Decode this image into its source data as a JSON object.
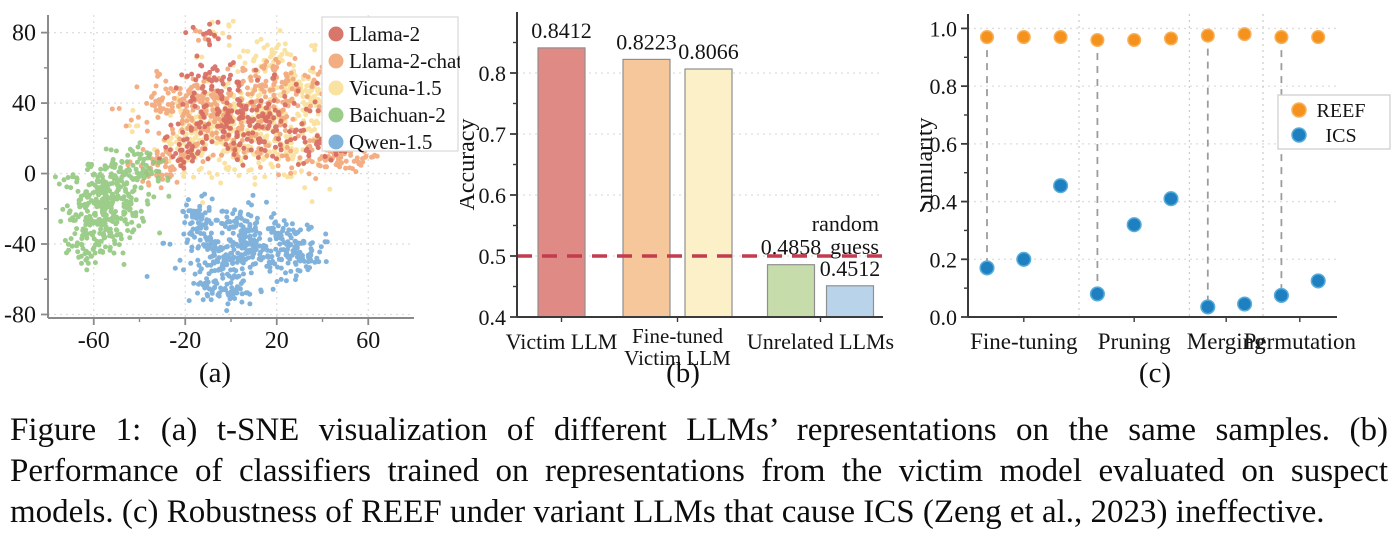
{
  "figure": {
    "caption": "Figure 1: (a) t-SNE visualization of different LLMs’ representations on the same samples. (b) Performance of classifiers trained on representations from the victim model evaluated on suspect models. (c) Robustness of REEF under variant LLMs that cause ICS (Zeng et al., 2023) ineffective.",
    "panel_labels": {
      "a": "(a)",
      "b": "(b)",
      "c": "(c)"
    }
  },
  "chart_data": [
    {
      "id": "tsne",
      "type": "scatter",
      "description": "t-SNE visualization of LLM representations",
      "xlim": [
        -80,
        80
      ],
      "ylim": [
        -82,
        90
      ],
      "xticks": {
        "values": [
          -60,
          -20,
          20,
          60
        ],
        "labels": [
          "-60",
          "-20",
          "20",
          "60"
        ],
        "minor": [
          -40,
          0,
          40
        ]
      },
      "yticks": {
        "values": [
          80,
          40,
          0,
          -40,
          -80
        ],
        "labels": [
          "80",
          "40",
          "0",
          "-40",
          "-80"
        ],
        "minor": [
          60,
          20,
          -20,
          -60
        ]
      },
      "grid": true,
      "legend_position": "top-right",
      "draw_order": [
        2,
        1,
        0,
        3,
        4
      ],
      "series": [
        {
          "name": "Llama-2",
          "color": "#d66a60",
          "clusters": [
            {
              "cx": 6,
              "cy": 30,
              "sx": 14,
              "sy": 12,
              "n": 190
            },
            {
              "cx": -8,
              "cy": 52,
              "sx": 6,
              "sy": 6,
              "n": 35
            },
            {
              "cx": 42,
              "cy": 12,
              "sx": 7,
              "sy": 5,
              "n": 28
            },
            {
              "cx": -10,
              "cy": 80,
              "sx": 4,
              "sy": 3,
              "n": 12
            },
            {
              "cx": -20,
              "cy": 12,
              "sx": 5,
              "sy": 5,
              "n": 25
            }
          ]
        },
        {
          "name": "Llama-2-chat",
          "color": "#f2a678",
          "clusters": [
            {
              "cx": 2,
              "cy": 34,
              "sx": 17,
              "sy": 13,
              "n": 250
            },
            {
              "cx": 47,
              "cy": 10,
              "sx": 9,
              "sy": 6,
              "n": 85
            },
            {
              "cx": -24,
              "cy": 40,
              "sx": 8,
              "sy": 8,
              "n": 70
            },
            {
              "cx": -30,
              "cy": 6,
              "sx": 6,
              "sy": 6,
              "n": 55
            },
            {
              "cx": 25,
              "cy": 56,
              "sx": 9,
              "sy": 5,
              "n": 45
            },
            {
              "cx": -12,
              "cy": 78,
              "sx": 3,
              "sy": 2.5,
              "n": 8
            }
          ]
        },
        {
          "name": "Vicuna-1.5",
          "color": "#fae098",
          "clusters": [
            {
              "cx": 10,
              "cy": 26,
              "sx": 19,
              "sy": 14,
              "n": 360
            },
            {
              "cx": 35,
              "cy": 48,
              "sx": 9,
              "sy": 7,
              "n": 70
            },
            {
              "cx": -14,
              "cy": 18,
              "sx": 8,
              "sy": 9,
              "n": 70
            },
            {
              "cx": 16,
              "cy": 66,
              "sx": 8,
              "sy": 5,
              "n": 45
            },
            {
              "cx": 48,
              "cy": 25,
              "sx": 6,
              "sy": 6,
              "n": 45
            },
            {
              "cx": -6,
              "cy": 82,
              "sx": 4,
              "sy": 3,
              "n": 8
            }
          ]
        },
        {
          "name": "Baichuan-2",
          "color": "#92c87e",
          "clusters": [
            {
              "cx": -55,
              "cy": -18,
              "sx": 9,
              "sy": 13,
              "n": 300
            },
            {
              "cx": -42,
              "cy": 3,
              "sx": 6,
              "sy": 6,
              "n": 70
            },
            {
              "cx": -62,
              "cy": -42,
              "sx": 5,
              "sy": 5,
              "n": 45
            }
          ]
        },
        {
          "name": "Qwen-1.5",
          "color": "#74aad8",
          "clusters": [
            {
              "cx": 3,
              "cy": -42,
              "sx": 12,
              "sy": 11,
              "n": 320
            },
            {
              "cx": 30,
              "cy": -44,
              "sx": 6,
              "sy": 7,
              "n": 90
            },
            {
              "cx": -3,
              "cy": -66,
              "sx": 7,
              "sy": 3.5,
              "n": 55
            },
            {
              "cx": -14,
              "cy": -25,
              "sx": 4,
              "sy": 6,
              "n": 40
            }
          ]
        }
      ]
    },
    {
      "id": "accuracy",
      "type": "bar",
      "ylabel": "Accuracy",
      "ylim": [
        0.4,
        0.9
      ],
      "yticks": {
        "values": [
          0.4,
          0.5,
          0.6,
          0.7,
          0.8
        ],
        "labels": [
          "0.4",
          "0.5",
          "0.6",
          "0.7",
          "0.8"
        ],
        "minor": [
          0.45,
          0.55,
          0.65,
          0.75,
          0.85
        ]
      },
      "grid_values": [
        0.5,
        0.6,
        0.7,
        0.8
      ],
      "categories": [
        {
          "lines": [
            "Victim LLM"
          ]
        },
        {
          "lines": [
            "Fine-tuned",
            "Victim LLM"
          ]
        },
        {
          "lines": [
            "Unrelated LLMs"
          ]
        }
      ],
      "bars": [
        {
          "value": 0.8412,
          "label": "0.8412",
          "color": "#e08a85",
          "category": 0
        },
        {
          "value": 0.8223,
          "label": "0.8223",
          "color": "#f6c79b",
          "category": 1
        },
        {
          "value": 0.8066,
          "label": "0.8066",
          "color": "#fbf0c7",
          "category": 1
        },
        {
          "value": 0.4858,
          "label": "0.4858",
          "color": "#c6dcab",
          "category": 2
        },
        {
          "value": 0.4512,
          "label": "0.4512",
          "color": "#b9d3eb",
          "category": 2
        }
      ],
      "reference_line": {
        "value": 0.5,
        "color": "#c33b4e",
        "label_lines": [
          "random",
          "guess"
        ]
      }
    },
    {
      "id": "robustness",
      "type": "scatter",
      "ylabel": "Similarity",
      "ylim": [
        0.0,
        1.05
      ],
      "yticks": {
        "values": [
          0.0,
          0.2,
          0.4,
          0.6,
          0.8,
          1.0
        ],
        "labels": [
          "0.0",
          "0.2",
          "0.4",
          "0.6",
          "0.8",
          "1.0"
        ],
        "minor": [
          0.1,
          0.3,
          0.5,
          0.7,
          0.9
        ]
      },
      "series_styles": {
        "REEF": {
          "color": "#f5921e",
          "edge": "#f8b158"
        },
        "ICS": {
          "color": "#1f80c1",
          "edge": "#58acd8"
        }
      },
      "legend": [
        {
          "name": "REEF"
        },
        {
          "name": "ICS"
        }
      ],
      "groups": [
        {
          "label": "Fine-tuning",
          "reef": [
            0.97,
            0.97,
            0.97
          ],
          "ics": [
            0.17,
            0.2,
            0.455
          ]
        },
        {
          "label": "Pruning",
          "reef": [
            0.96,
            0.96,
            0.965
          ],
          "ics": [
            0.08,
            0.32,
            0.41
          ]
        },
        {
          "label": "Merging",
          "reef": [
            0.975,
            0.98
          ],
          "ics": [
            0.035,
            0.045
          ]
        },
        {
          "label": "Permutation",
          "reef": [
            0.97,
            0.97
          ],
          "ics": [
            0.075,
            0.125
          ]
        }
      ],
      "connector_point_indices": [
        0,
        3,
        6,
        8
      ]
    }
  ]
}
